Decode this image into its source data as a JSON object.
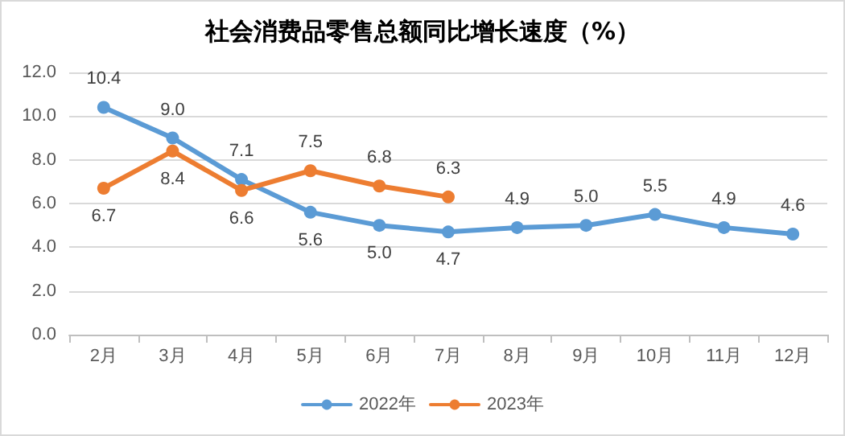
{
  "chart_data": {
    "type": "line",
    "title": "社会消费品零售总额同比增长速度（%）",
    "categories": [
      "2月",
      "3月",
      "4月",
      "5月",
      "6月",
      "7月",
      "8月",
      "9月",
      "10月",
      "11月",
      "12月"
    ],
    "series": [
      {
        "name": "2022年",
        "color": "#5b9bd5",
        "values": [
          10.4,
          9.0,
          7.1,
          5.6,
          5.0,
          4.7,
          4.9,
          5.0,
          5.5,
          4.9,
          4.6
        ],
        "value_labels": [
          "10.4",
          "9.0",
          "7.1",
          "5.6",
          "5.0",
          "4.7",
          "4.9",
          "5.0",
          "5.5",
          "4.9",
          "4.6"
        ]
      },
      {
        "name": "2023年",
        "color": "#ed7d31",
        "values": [
          6.7,
          8.4,
          6.6,
          7.5,
          6.8,
          6.3,
          null,
          null,
          null,
          null,
          null
        ],
        "value_labels": [
          "6.7",
          "8.4",
          "6.6",
          "7.5",
          "6.8",
          "6.3",
          null,
          null,
          null,
          null,
          null
        ]
      }
    ],
    "ylim": [
      0,
      12
    ],
    "yticks": [
      {
        "value": 0,
        "label": "0.0"
      },
      {
        "value": 2,
        "label": "2.0"
      },
      {
        "value": 4,
        "label": "4.0"
      },
      {
        "value": 6,
        "label": "6.0"
      },
      {
        "value": 8,
        "label": "8.0"
      },
      {
        "value": 10,
        "label": "10.0"
      },
      {
        "value": 12,
        "label": "12.0"
      }
    ],
    "grid": "y",
    "legend": "bottom",
    "marker": "circle",
    "line_style": "solid"
  }
}
